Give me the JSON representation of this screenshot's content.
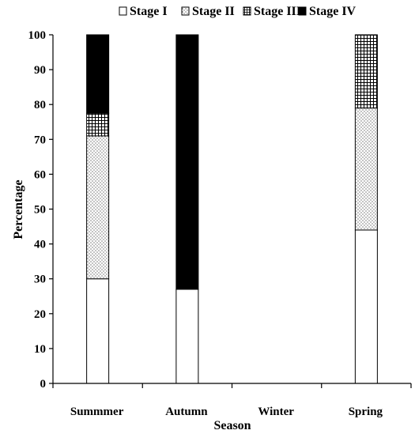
{
  "chart_data": {
    "type": "bar",
    "stacked": true,
    "title": "",
    "xlabel": "Season",
    "ylabel": "Percentage",
    "categories": [
      "Summmer",
      "Autumn",
      "Winter",
      "Spring"
    ],
    "ylim": [
      0,
      100
    ],
    "yticks": [
      0,
      10,
      20,
      30,
      40,
      50,
      60,
      70,
      80,
      90,
      100
    ],
    "grid": false,
    "legend_position": "top",
    "series": [
      {
        "name": "Stage I",
        "values": [
          30,
          27,
          0,
          44
        ],
        "fill": "white"
      },
      {
        "name": "Stage II",
        "values": [
          41,
          0,
          0,
          35
        ],
        "fill": "dots"
      },
      {
        "name": "Stage III",
        "values": [
          6.5,
          0,
          0,
          21
        ],
        "fill": "grid"
      },
      {
        "name": "Stage IV",
        "values": [
          22.5,
          73,
          0,
          0
        ],
        "fill": "black"
      }
    ]
  }
}
